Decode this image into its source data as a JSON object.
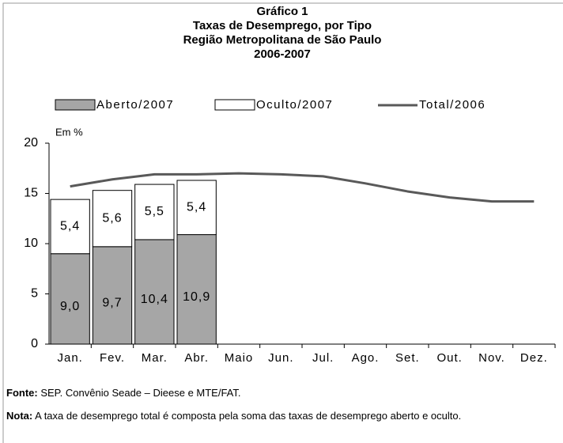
{
  "chart_data": {
    "type": "bar",
    "stacked": true,
    "title": "Gráfico 1",
    "subtitle": [
      "Taxas de Desemprego, por Tipo",
      "Região Metropolitana de São Paulo",
      "2006-2007"
    ],
    "y_label": "Em %",
    "categories": [
      "Jan.",
      "Fev.",
      "Mar.",
      "Abr.",
      "Maio",
      "Jun.",
      "Jul.",
      "Ago.",
      "Set.",
      "Out.",
      "Nov.",
      "Dez."
    ],
    "series": [
      {
        "name": "Aberto/2007",
        "type": "bar",
        "color": "#a6a6a6",
        "values": [
          9.0,
          9.7,
          10.4,
          10.9,
          null,
          null,
          null,
          null,
          null,
          null,
          null,
          null
        ],
        "value_labels": [
          "9,0",
          "9,7",
          "10,4",
          "10,9",
          null,
          null,
          null,
          null,
          null,
          null,
          null,
          null
        ]
      },
      {
        "name": "Oculto/2007",
        "type": "bar",
        "color": "#ffffff",
        "values": [
          5.4,
          5.6,
          5.5,
          5.4,
          null,
          null,
          null,
          null,
          null,
          null,
          null,
          null
        ],
        "value_labels": [
          "5,4",
          "5,6",
          "5,5",
          "5,4",
          null,
          null,
          null,
          null,
          null,
          null,
          null,
          null
        ]
      },
      {
        "name": "Total/2006",
        "type": "line",
        "color": "#595959",
        "values": [
          15.7,
          16.4,
          16.9,
          16.9,
          17.0,
          16.9,
          16.7,
          16.0,
          15.2,
          14.6,
          14.2,
          14.2
        ]
      }
    ],
    "ylim": [
      0,
      20
    ],
    "yticks": [
      0,
      5,
      10,
      15,
      20
    ],
    "grid": false,
    "legend": "top",
    "source_label": "Fonte:",
    "source": "SEP. Convênio Seade – Dieese e MTE/FAT.",
    "note_label": "Nota:",
    "note": "A taxa de desemprego total é composta pela soma das taxas de desemprego aberto e oculto."
  }
}
